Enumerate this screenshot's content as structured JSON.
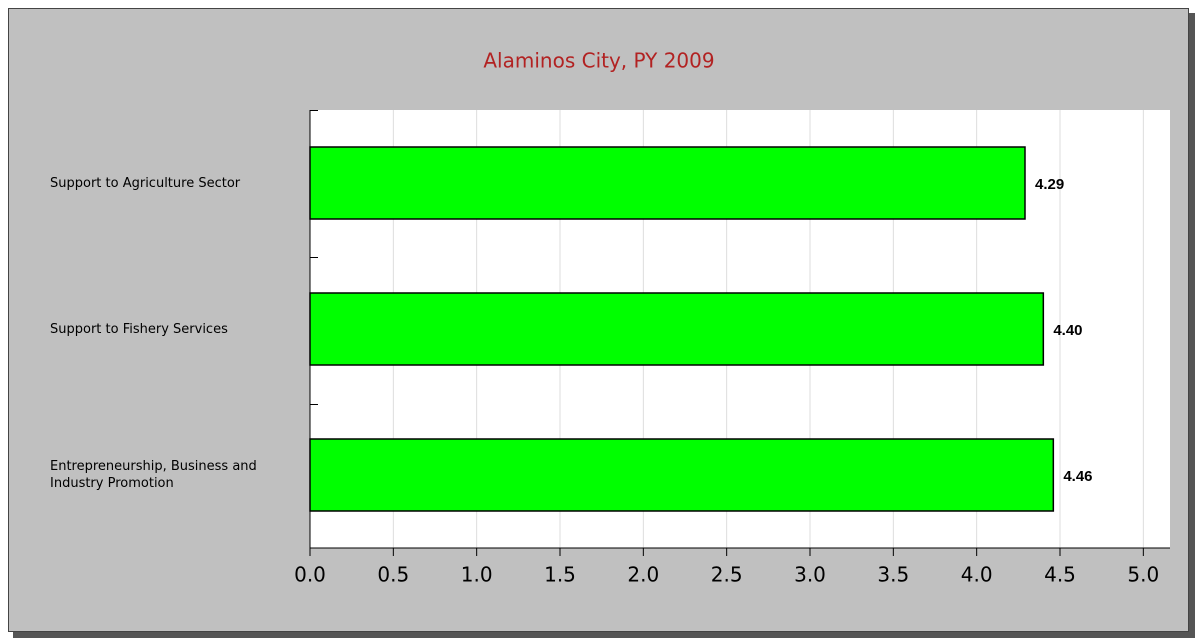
{
  "chart_data": {
    "type": "barh",
    "title": "Alaminos City, PY 2009",
    "categories": [
      "Support to Agriculture Sector",
      "Support to Fishery Services",
      "Entrepreneurship, Business and Industry Promotion"
    ],
    "values": [
      4.29,
      4.4,
      4.46
    ],
    "value_labels": [
      "4.29",
      "4.40",
      "4.46"
    ],
    "color": "#00ff00",
    "xlim": [
      0,
      5.16
    ],
    "xticks": [
      {
        "value": 0,
        "label": "0.0"
      },
      {
        "value": 0.5,
        "label": "0.5"
      },
      {
        "value": 1,
        "label": "1.0"
      },
      {
        "value": 1.5,
        "label": "1.5"
      },
      {
        "value": 2,
        "label": "2.0"
      },
      {
        "value": 2.5,
        "label": "2.5"
      },
      {
        "value": 3,
        "label": "3.0"
      },
      {
        "value": 3.5,
        "label": "3.5"
      },
      {
        "value": 4,
        "label": "4.0"
      },
      {
        "value": 4.5,
        "label": "4.5"
      },
      {
        "value": 5,
        "label": "5.0"
      }
    ],
    "grid": true
  }
}
